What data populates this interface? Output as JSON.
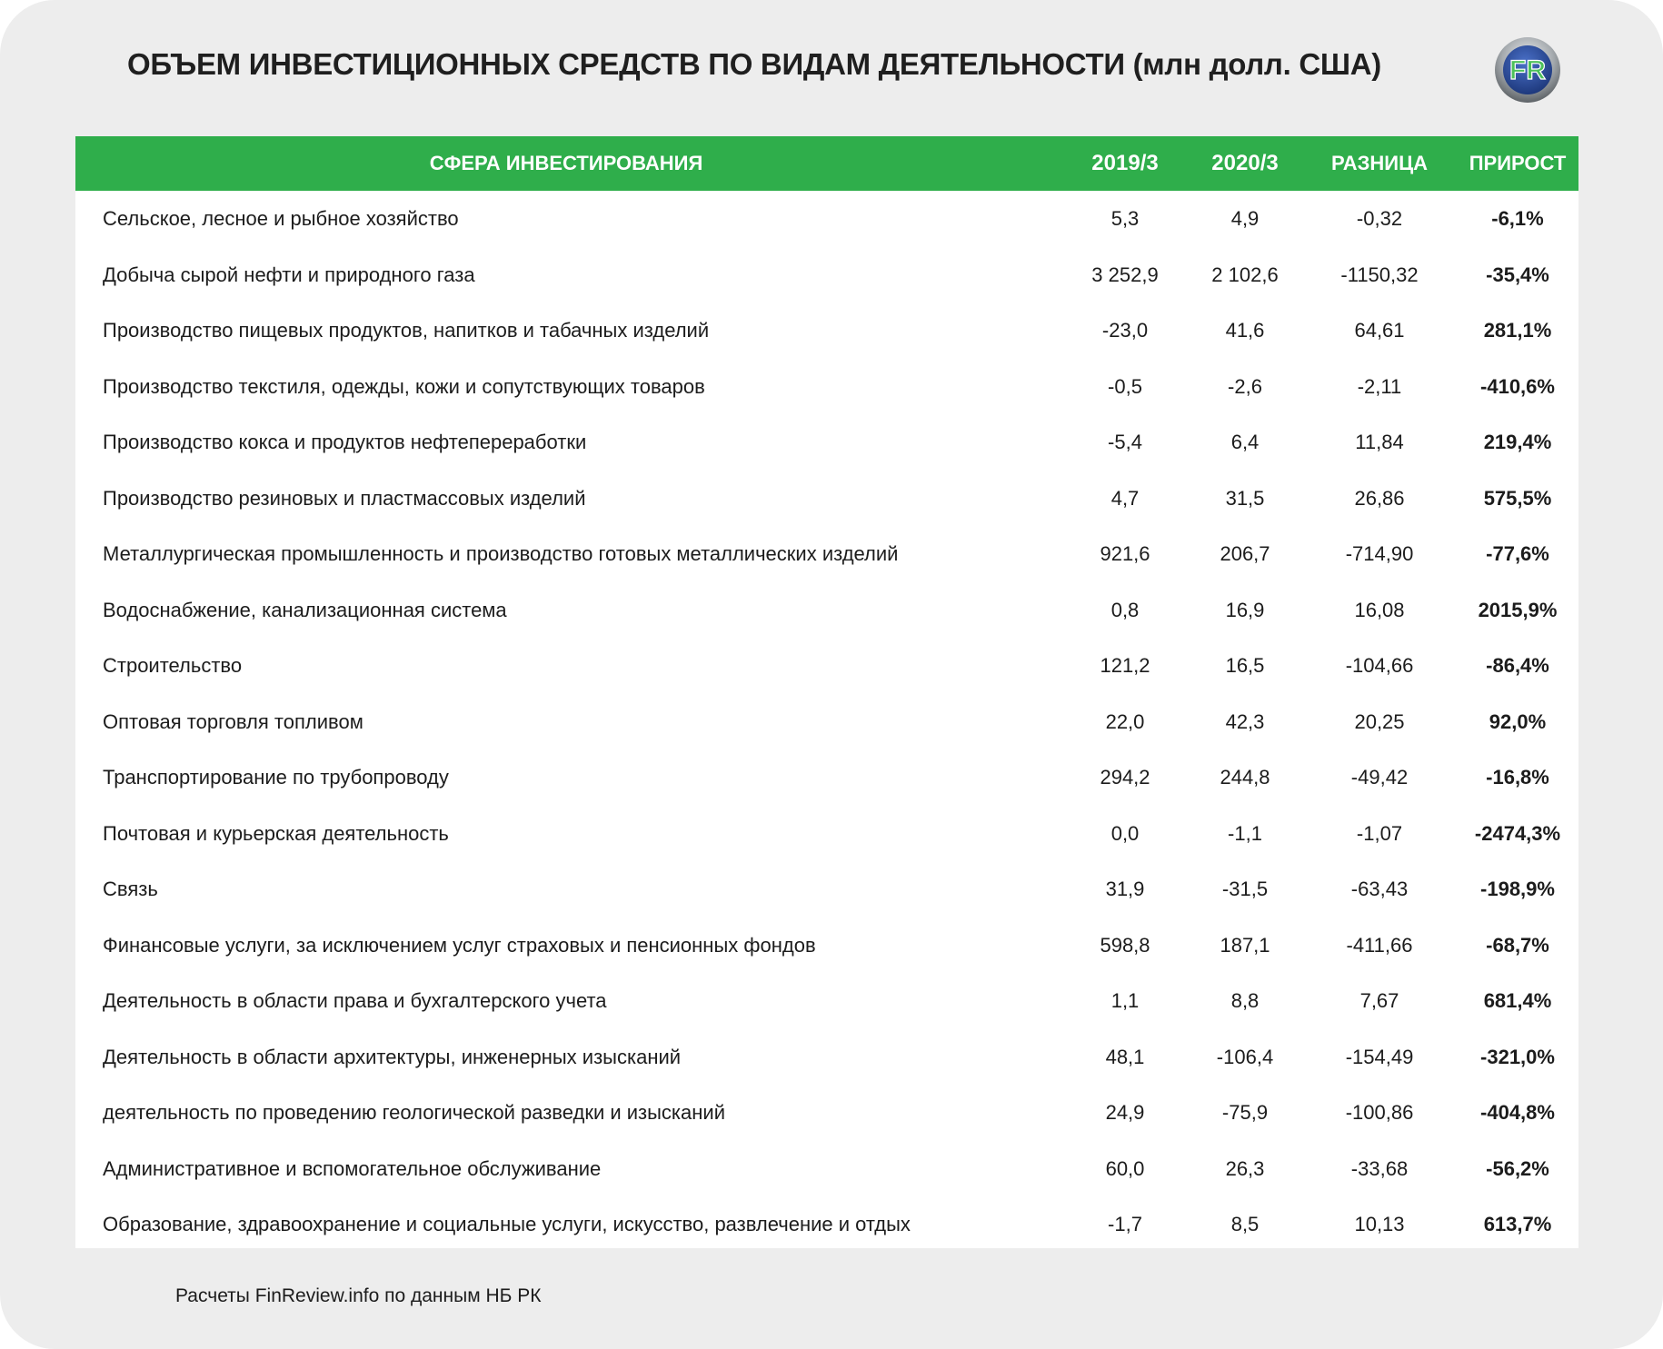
{
  "title": "ОБЪЕМ ИНВЕСТИЦИОННЫХ СРЕДСТВ ПО ВИДАМ ДЕЯТЕЛЬНОСТИ (млн долл. США)",
  "logo": {
    "text": "FR",
    "icon": "finreview-logo-icon",
    "colors": {
      "ring": "#8a8f93",
      "inner": "#2b4fa3",
      "letters": "#4cc15a"
    }
  },
  "colors": {
    "header_bg": "#2fae4b",
    "header_text": "#ffffff",
    "page_bg": "#ededed",
    "panel_bg": "#ffffff"
  },
  "chart_data": {
    "type": "table",
    "columns": [
      "СФЕРА ИНВЕСТИРОВАНИЯ",
      "2019/3",
      "2020/3",
      "РАЗНИЦА",
      "ПРИРОСТ"
    ],
    "rows": [
      {
        "sector": "Сельское, лесное и рыбное хозяйство",
        "y2019": "5,3",
        "y2020": "4,9",
        "diff": "-0,32",
        "growth": "-6,1%"
      },
      {
        "sector": "Добыча сырой нефти и природного газа",
        "y2019": "3 252,9",
        "y2020": "2 102,6",
        "diff": "-1150,32",
        "growth": "-35,4%"
      },
      {
        "sector": "Производство пищевых продуктов, напитков и табачных изделий",
        "y2019": "-23,0",
        "y2020": "41,6",
        "diff": "64,61",
        "growth": "281,1%"
      },
      {
        "sector": "Производство текстиля, одежды, кожи и сопутствующих товаров",
        "y2019": "-0,5",
        "y2020": "-2,6",
        "diff": "-2,11",
        "growth": "-410,6%"
      },
      {
        "sector": "Производство кокса и продуктов нефтепереработки",
        "y2019": "-5,4",
        "y2020": "6,4",
        "diff": "11,84",
        "growth": "219,4%"
      },
      {
        "sector": "Производство резиновых и пластмассовых изделий",
        "y2019": "4,7",
        "y2020": "31,5",
        "diff": "26,86",
        "growth": "575,5%"
      },
      {
        "sector": "Металлургическая промышленность и производство готовых металлических изделий",
        "y2019": "921,6",
        "y2020": "206,7",
        "diff": "-714,90",
        "growth": "-77,6%"
      },
      {
        "sector": "Водоснабжение, канализационная система",
        "y2019": "0,8",
        "y2020": "16,9",
        "diff": "16,08",
        "growth": "2015,9%"
      },
      {
        "sector": "Строительство",
        "y2019": "121,2",
        "y2020": "16,5",
        "diff": "-104,66",
        "growth": "-86,4%"
      },
      {
        "sector": "Оптовая торговля топливом",
        "y2019": "22,0",
        "y2020": "42,3",
        "diff": "20,25",
        "growth": "92,0%"
      },
      {
        "sector": "Транспортирование по трубопроводу",
        "y2019": "294,2",
        "y2020": "244,8",
        "diff": "-49,42",
        "growth": "-16,8%"
      },
      {
        "sector": "Почтовая и курьерская деятельность",
        "y2019": "0,0",
        "y2020": "-1,1",
        "diff": "-1,07",
        "growth": "-2474,3%"
      },
      {
        "sector": "Связь",
        "y2019": "31,9",
        "y2020": "-31,5",
        "diff": "-63,43",
        "growth": "-198,9%"
      },
      {
        "sector": "Финансовые услуги, за исключением услуг страховых и пенсионных фондов",
        "y2019": "598,8",
        "y2020": "187,1",
        "diff": "-411,66",
        "growth": "-68,7%"
      },
      {
        "sector": "Деятельность в области права и бухгалтерского учета",
        "y2019": "1,1",
        "y2020": "8,8",
        "diff": "7,67",
        "growth": "681,4%"
      },
      {
        "sector": "Деятельность в области архитектуры, инженерных изысканий",
        "y2019": "48,1",
        "y2020": "-106,4",
        "diff": "-154,49",
        "growth": "-321,0%"
      },
      {
        "sector": "деятельность по проведению геологической разведки и изысканий",
        "y2019": "24,9",
        "y2020": "-75,9",
        "diff": "-100,86",
        "growth": "-404,8%"
      },
      {
        "sector": "Административное и вспомогательное обслуживание",
        "y2019": "60,0",
        "y2020": "26,3",
        "diff": "-33,68",
        "growth": "-56,2%"
      },
      {
        "sector": "Образование, здравоохранение и социальные услуги, искусство, развлечение и отдых",
        "y2019": "-1,7",
        "y2020": "8,5",
        "diff": "10,13",
        "growth": "613,7%"
      }
    ]
  },
  "source": "Расчеты FinReview.info по данным НБ РК"
}
